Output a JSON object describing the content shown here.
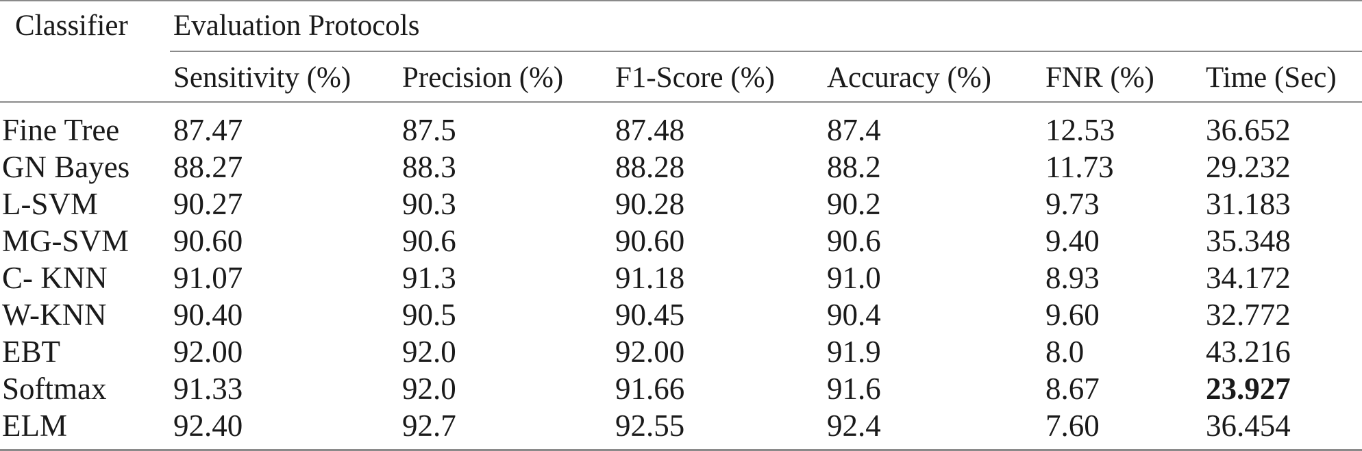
{
  "table": {
    "header": {
      "classifier": "Classifier",
      "group": "Evaluation Protocols",
      "columns": [
        "Sensitivity (%)",
        "Precision (%)",
        "F1-Score (%)",
        "Accuracy (%)",
        "FNR (%)",
        "Time (Sec)"
      ]
    },
    "rows": [
      {
        "name": "Fine Tree",
        "values": [
          "87.47",
          "87.5",
          "87.48",
          "87.4",
          "12.53",
          "36.652"
        ]
      },
      {
        "name": "GN Bayes",
        "values": [
          "88.27",
          "88.3",
          "88.28",
          "88.2",
          "11.73",
          "29.232"
        ]
      },
      {
        "name": "L-SVM",
        "values": [
          "90.27",
          "90.3",
          "90.28",
          "90.2",
          "9.73",
          "31.183"
        ]
      },
      {
        "name": "MG-SVM",
        "values": [
          "90.60",
          "90.6",
          "90.60",
          "90.6",
          "9.40",
          "35.348"
        ]
      },
      {
        "name": "C- KNN",
        "values": [
          "91.07",
          "91.3",
          "91.18",
          "91.0",
          "8.93",
          "34.172"
        ]
      },
      {
        "name": "W-KNN",
        "values": [
          "90.40",
          "90.5",
          "90.45",
          "90.4",
          "9.60",
          "32.772"
        ]
      },
      {
        "name": "EBT",
        "values": [
          "92.00",
          "92.0",
          "92.00",
          "91.9",
          "8.0",
          "43.216"
        ]
      },
      {
        "name": "Softmax",
        "values": [
          "91.33",
          "92.0",
          "91.66",
          "91.6",
          "8.67",
          "23.927"
        ]
      },
      {
        "name": "ELM",
        "values": [
          "92.40",
          "92.7",
          "92.55",
          "92.4",
          "7.60",
          "36.454"
        ]
      }
    ]
  }
}
